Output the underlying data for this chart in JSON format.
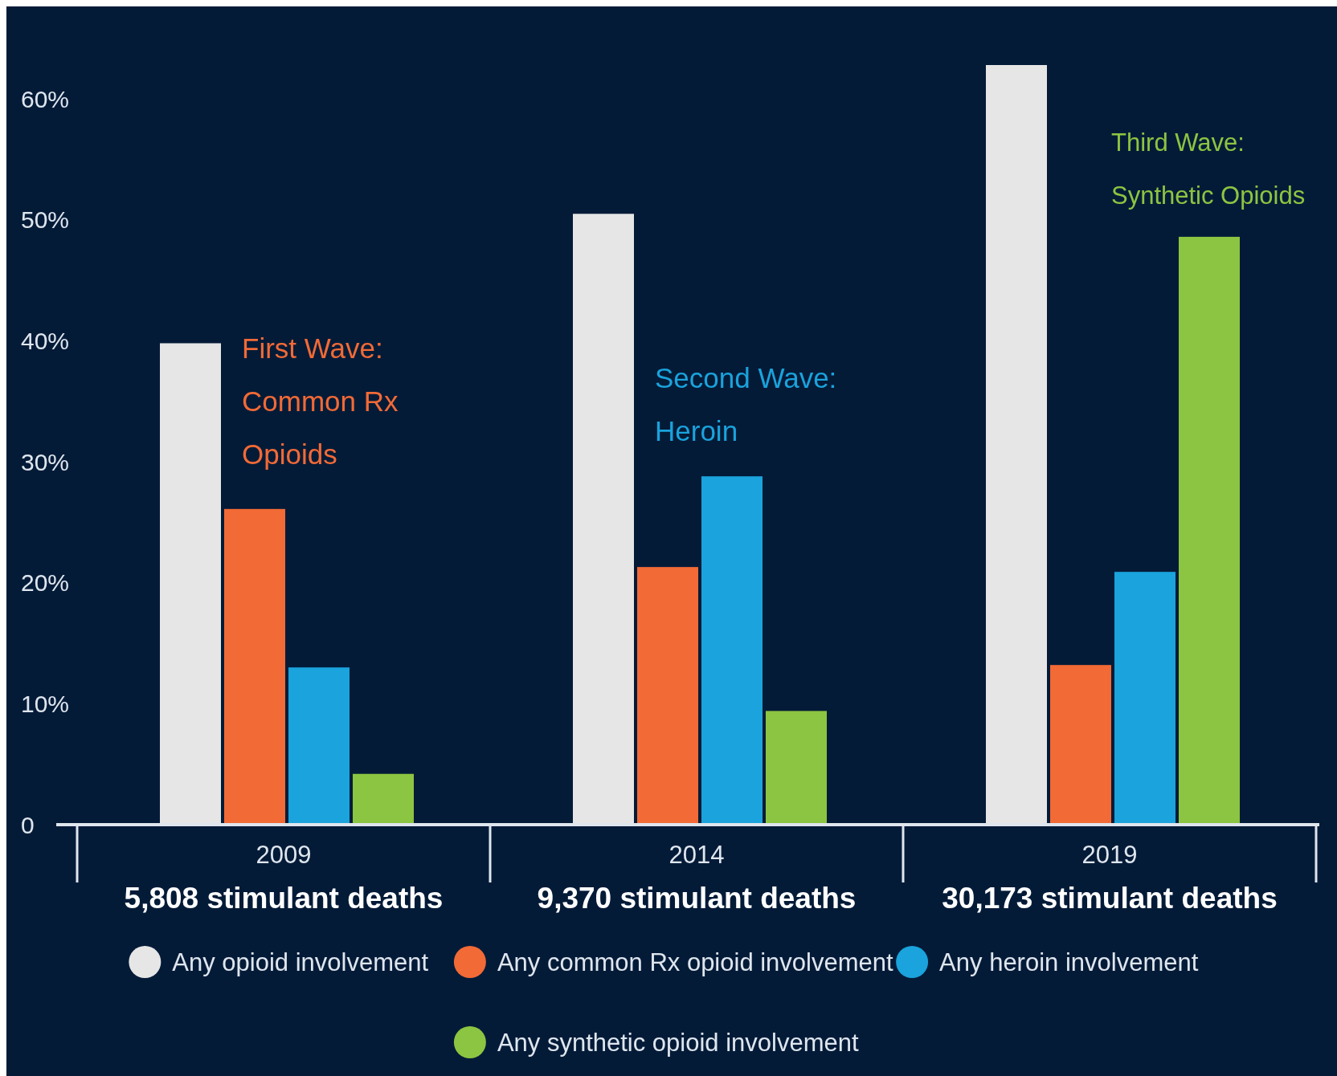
{
  "chart_data": {
    "type": "bar",
    "categories": [
      "2009",
      "2014",
      "2019"
    ],
    "series": [
      {
        "name": "Any opioid involvement",
        "color": "#e6e6e6",
        "values": [
          39.8,
          50.5,
          62.8
        ]
      },
      {
        "name": "Any common Rx opioid involvement",
        "color": "#f26a36",
        "values": [
          26.1,
          21.3,
          13.2
        ]
      },
      {
        "name": "Any heroin involvement",
        "color": "#1aa3dc",
        "values": [
          13.0,
          28.8,
          20.9
        ]
      },
      {
        "name": "Any synthetic opioid involvement",
        "color": "#8cc541",
        "values": [
          4.2,
          9.4,
          48.6
        ]
      }
    ],
    "ylim": [
      0,
      62.8
    ],
    "yticks": [
      {
        "value": 0,
        "label": "0"
      },
      {
        "value": 10,
        "label": "10%"
      },
      {
        "value": 20,
        "label": "20%"
      },
      {
        "value": 30,
        "label": "30%"
      },
      {
        "value": 40,
        "label": "40%"
      },
      {
        "value": 50,
        "label": "50%"
      },
      {
        "value": 60,
        "label": "60%"
      }
    ],
    "grid": false,
    "legend": "bottom",
    "annotations": [
      "5,808 stimulant deaths",
      "9,370 stimulant deaths",
      "30,173 stimulant deaths",
      "First Wave: Common Rx Opioids",
      "Second Wave: Heroin",
      "Third Wave: Synthetic Opioids"
    ]
  }
}
